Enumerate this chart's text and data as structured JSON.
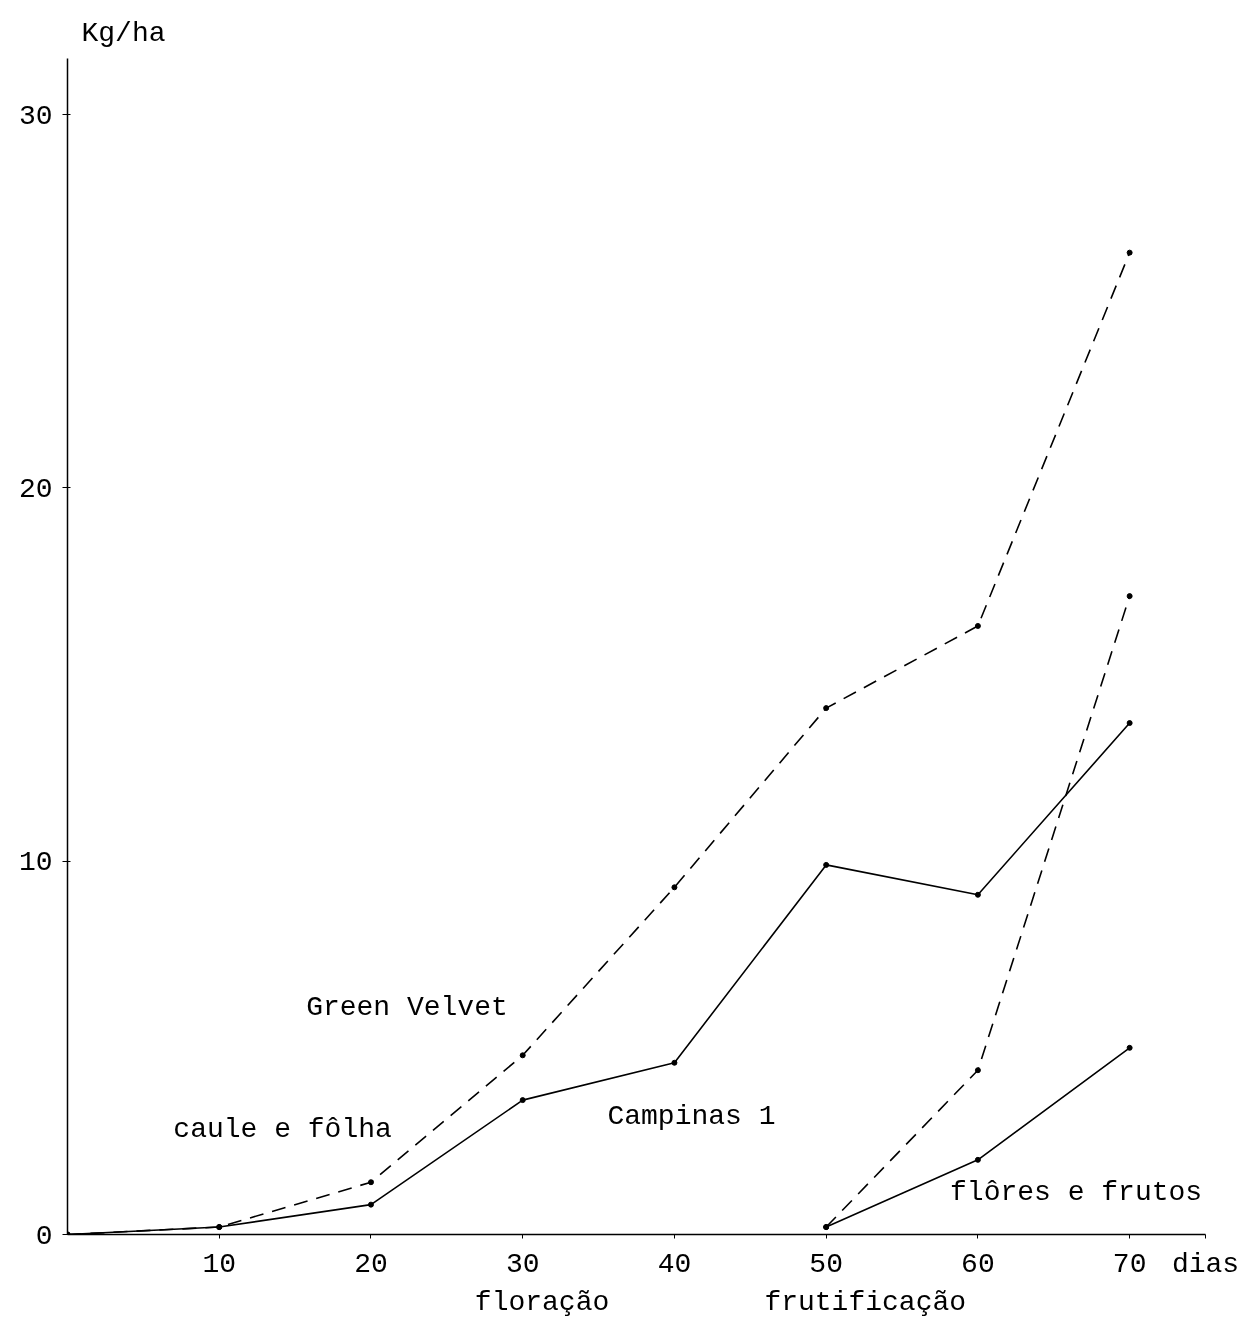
{
  "chart_data": {
    "type": "line",
    "xlabel": "dias",
    "ylabel": "Kg/ha",
    "xlim": [
      0,
      75
    ],
    "ylim": [
      0,
      31.5
    ],
    "xticks": [
      10,
      20,
      30,
      40,
      50,
      60,
      70
    ],
    "yticks": [
      0,
      10,
      20,
      30
    ],
    "grid": false,
    "marker": "circle",
    "series": [
      {
        "name": "Green Velvet",
        "color": "#000000",
        "line_style": "dashed",
        "x": [
          0,
          10,
          20,
          30,
          40,
          50,
          60,
          70
        ],
        "values": [
          0,
          0.2,
          1.4,
          4.8,
          9.3,
          14.1,
          16.3,
          26.3
        ]
      },
      {
        "name": "Campinas 1",
        "color": "#000000",
        "line_style": "solid",
        "x": [
          0,
          10,
          20,
          30,
          40,
          50,
          60,
          70
        ],
        "values": [
          0,
          0.2,
          0.8,
          3.6,
          4.6,
          9.9,
          9.1,
          13.7
        ]
      },
      {
        "color": "#000000",
        "line_style": "dashed",
        "x": [
          50,
          60,
          70
        ],
        "values": [
          0.2,
          4.4,
          17.1
        ]
      },
      {
        "color": "#000000",
        "line_style": "solid",
        "x": [
          50,
          60,
          70
        ],
        "values": [
          0.2,
          2.0,
          5.0
        ]
      }
    ],
    "annotations": [
      "caule e fôlha",
      "flôres e frutos",
      "floração",
      "frutificação"
    ]
  }
}
